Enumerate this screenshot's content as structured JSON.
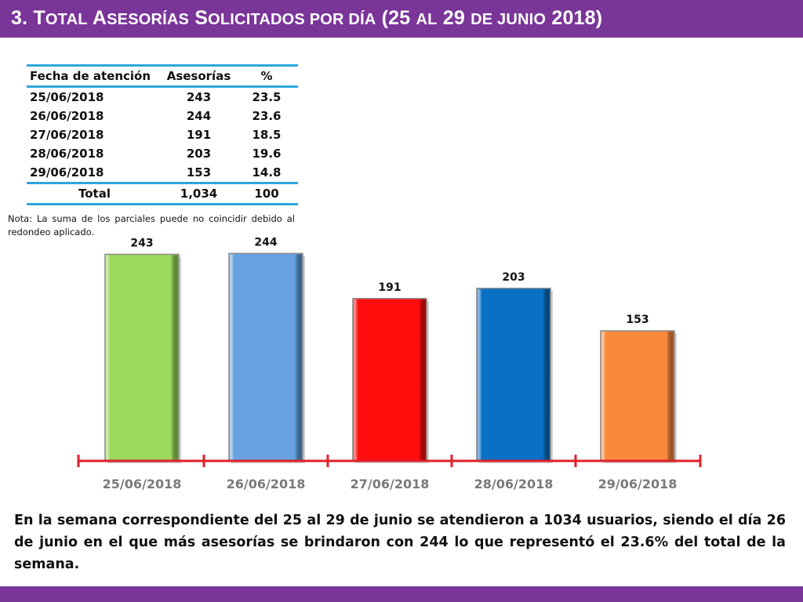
{
  "slide": {
    "title_num": "3.",
    "title_big1": "T",
    "title_small1": "OTAL",
    "title_big2": "A",
    "title_small2": "SESORÍAS",
    "title_big3": "S",
    "title_small3": "OLICITADOS POR DÍA",
    "title_paren_open": "(25",
    "title_small4": "AL",
    "title_num2": "29",
    "title_small5": "DE JUNIO",
    "title_paren_close": "2018)",
    "brand_color": "#7a3599"
  },
  "table": {
    "headers": [
      "Fecha de atención",
      "Asesorías",
      "%"
    ],
    "rows": [
      [
        "25/06/2018",
        "243",
        "23.5"
      ],
      [
        "26/06/2018",
        "244",
        "23.6"
      ],
      [
        "27/06/2018",
        "191",
        "18.5"
      ],
      [
        "28/06/2018",
        "203",
        "19.6"
      ],
      [
        "29/06/2018",
        "153",
        "14.8"
      ]
    ],
    "total": [
      "Total",
      "1,034",
      "100"
    ],
    "note": "Nota: La suma de los parciales puede no coincidir debido al redondeo aplicado.",
    "rule_color": "#2ea6dc"
  },
  "chart_data": {
    "type": "bar",
    "categories": [
      "25/06/2018",
      "26/06/2018",
      "27/06/2018",
      "28/06/2018",
      "29/06/2018"
    ],
    "values": [
      243,
      244,
      191,
      203,
      153
    ],
    "colors": [
      "#9cd95a",
      "#66a3e0",
      "#ff0d0d",
      "#0a70c5",
      "#f98a3c"
    ],
    "axis_color": "#e0202a",
    "ylim": [
      0,
      260
    ],
    "grid": false,
    "legend": "none"
  },
  "summary": "En la semana correspondiente del 25 al 29 de junio se atendieron a 1034 usuarios, siendo el día 26 de junio en el que más asesorías se brindaron con 244 lo que representó el 23.6% del total de la semana."
}
